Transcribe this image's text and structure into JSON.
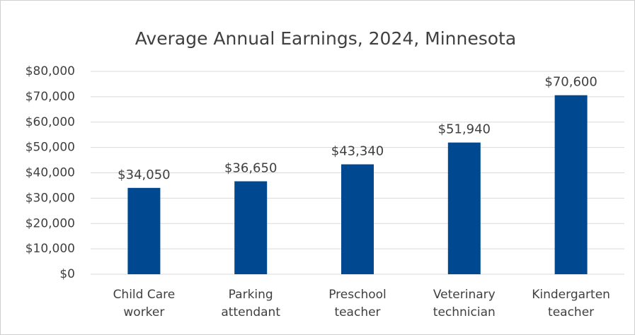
{
  "chart_data": {
    "type": "bar",
    "title": "Average Annual Earnings, 2024, Minnesota",
    "categories": [
      "Child Care worker",
      "Parking attendant",
      "Preschool teacher",
      "Veterinary technician",
      "Kindergarten teacher"
    ],
    "values": [
      34050,
      36650,
      43340,
      51940,
      70600
    ],
    "value_labels": [
      "$34,050",
      "$36,650",
      "$43,340",
      "$51,940",
      "$70,600"
    ],
    "color": "#004990",
    "ylim": [
      0,
      80000
    ],
    "yticks": [
      {
        "value": 0,
        "label": "$0"
      },
      {
        "value": 10000,
        "label": "$10,000"
      },
      {
        "value": 20000,
        "label": "$20,000"
      },
      {
        "value": 30000,
        "label": "$30,000"
      },
      {
        "value": 40000,
        "label": "$40,000"
      },
      {
        "value": 50000,
        "label": "$50,000"
      },
      {
        "value": 60000,
        "label": "$60,000"
      },
      {
        "value": 70000,
        "label": "$70,000"
      },
      {
        "value": 80000,
        "label": "$80,000"
      }
    ],
    "grid": true
  }
}
